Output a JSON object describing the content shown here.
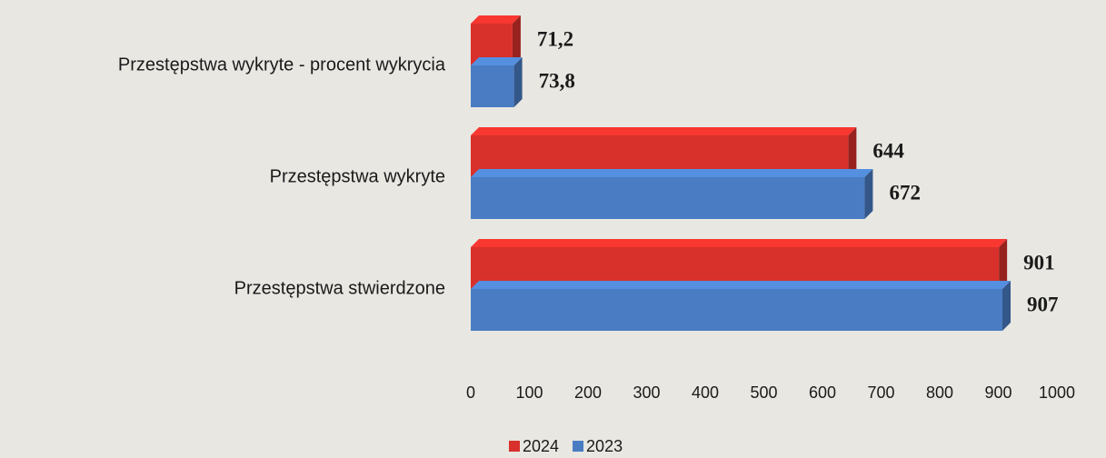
{
  "chart_data": {
    "type": "bar3d_horizontal",
    "categories": [
      "Przestępstwa wykryte - procent wykrycia",
      "Przestępstwa wykryte",
      "Przestępstwa stwierdzone"
    ],
    "series": [
      {
        "name": "2024",
        "color": "#d8302b",
        "values": [
          71.2,
          644,
          901
        ],
        "value_labels": [
          "71,2",
          "644",
          "901"
        ]
      },
      {
        "name": "2023",
        "color": "#4a7cc3",
        "values": [
          73.8,
          672,
          907
        ],
        "value_labels": [
          "73,8",
          "672",
          "907"
        ]
      }
    ],
    "xlim": [
      0,
      1000
    ],
    "xticks": [
      0,
      100,
      200,
      300,
      400,
      500,
      600,
      700,
      800,
      900,
      1000
    ],
    "legend": "bottom"
  }
}
